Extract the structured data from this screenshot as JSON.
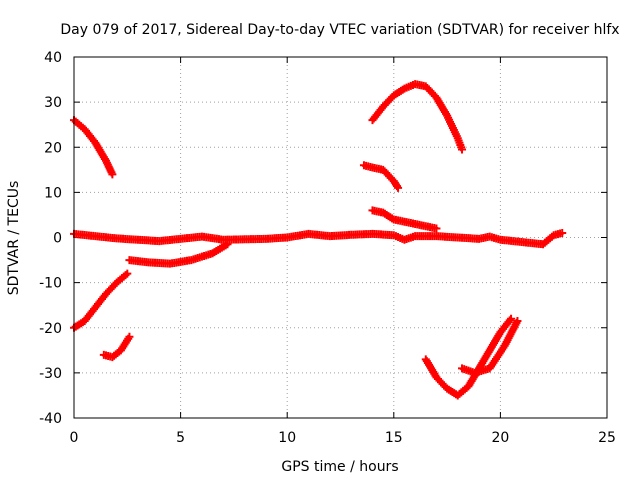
{
  "chart_data": {
    "type": "scatter",
    "title": "Day 079 of 2017, Sidereal Day-to-day VTEC variation (SDTVAR) for receiver hlfx",
    "xlabel": "GPS time / hours",
    "ylabel": "SDTVAR / TECUs",
    "xlim": [
      0,
      25
    ],
    "ylim": [
      -40,
      40
    ],
    "xticks": [
      0,
      5,
      10,
      15,
      20,
      25
    ],
    "yticks": [
      -40,
      -30,
      -20,
      -10,
      0,
      10,
      20,
      30,
      40
    ],
    "grid": true,
    "marker_color": "#ff0000",
    "series": [
      {
        "values": [
          [
            0.0,
            26
          ],
          [
            0.5,
            24
          ],
          [
            1.0,
            21
          ],
          [
            1.5,
            17
          ],
          [
            1.8,
            14
          ]
        ]
      },
      {
        "values": [
          [
            0.0,
            -20
          ],
          [
            0.5,
            -18.5
          ],
          [
            1.0,
            -15.5
          ],
          [
            1.5,
            -12.5
          ],
          [
            2.0,
            -10
          ],
          [
            2.5,
            -8
          ]
        ]
      },
      {
        "values": [
          [
            1.4,
            -26
          ],
          [
            1.8,
            -26.5
          ],
          [
            2.2,
            -25
          ],
          [
            2.6,
            -22
          ]
        ]
      },
      {
        "values": [
          [
            0.0,
            0.8
          ],
          [
            1.0,
            0.3
          ],
          [
            2.0,
            -0.2
          ],
          [
            3.0,
            -0.5
          ],
          [
            4.0,
            -0.8
          ],
          [
            5.0,
            -0.3
          ],
          [
            6.0,
            0.2
          ],
          [
            7.0,
            -0.5
          ],
          [
            8.0,
            -0.4
          ],
          [
            9.0,
            -0.3
          ],
          [
            10.0,
            0
          ],
          [
            11.0,
            0.8
          ],
          [
            12.0,
            0.3
          ],
          [
            13.0,
            0.6
          ],
          [
            14.0,
            0.8
          ],
          [
            15.0,
            0.5
          ],
          [
            15.5,
            -0.5
          ],
          [
            16.0,
            0.3
          ],
          [
            17.0,
            0.3
          ],
          [
            18.0,
            0
          ],
          [
            19.0,
            -0.3
          ],
          [
            19.5,
            0.2
          ],
          [
            20.0,
            -0.5
          ],
          [
            21.0,
            -1
          ],
          [
            22.0,
            -1.5
          ],
          [
            22.5,
            0.5
          ],
          [
            22.9,
            1
          ]
        ]
      },
      {
        "values": [
          [
            2.6,
            -5
          ],
          [
            3.5,
            -5.5
          ],
          [
            4.5,
            -5.8
          ],
          [
            5.5,
            -5
          ],
          [
            6.5,
            -3.5
          ],
          [
            7.2,
            -1.5
          ]
        ]
      },
      {
        "values": [
          [
            14.0,
            26
          ],
          [
            14.5,
            29
          ],
          [
            15.0,
            31.5
          ],
          [
            15.5,
            33
          ],
          [
            16.0,
            34
          ],
          [
            16.5,
            33.5
          ],
          [
            17.0,
            31
          ],
          [
            17.5,
            27
          ],
          [
            18.0,
            22
          ],
          [
            18.2,
            19.5
          ]
        ]
      },
      {
        "values": [
          [
            13.6,
            16
          ],
          [
            14.0,
            15.5
          ],
          [
            14.5,
            15
          ],
          [
            15.0,
            12.5
          ],
          [
            15.2,
            11
          ]
        ]
      },
      {
        "values": [
          [
            14.0,
            6
          ],
          [
            14.5,
            5.5
          ],
          [
            15.0,
            4
          ],
          [
            15.5,
            3.5
          ],
          [
            16.0,
            3
          ],
          [
            16.5,
            2.5
          ],
          [
            17.0,
            2
          ]
        ]
      },
      {
        "values": [
          [
            16.5,
            -27
          ],
          [
            17.0,
            -31
          ],
          [
            17.5,
            -33.5
          ],
          [
            18.0,
            -35
          ],
          [
            18.5,
            -33
          ],
          [
            19.0,
            -29
          ],
          [
            19.5,
            -25
          ],
          [
            20.0,
            -21
          ],
          [
            20.5,
            -18
          ]
        ]
      },
      {
        "values": [
          [
            18.2,
            -29
          ],
          [
            18.8,
            -30
          ],
          [
            19.5,
            -29
          ],
          [
            20.2,
            -24
          ],
          [
            20.8,
            -18.5
          ]
        ]
      }
    ]
  }
}
